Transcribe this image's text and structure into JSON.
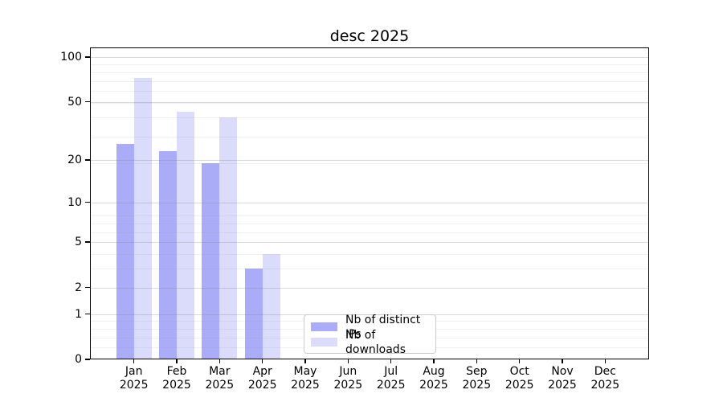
{
  "chart_data": {
    "type": "bar",
    "title": "desc 2025",
    "months": [
      "Jan",
      "Feb",
      "Mar",
      "Apr",
      "May",
      "Jun",
      "Jul",
      "Aug",
      "Sep",
      "Oct",
      "Nov",
      "Dec"
    ],
    "year_label": "2025",
    "series": [
      {
        "name": "Nb of distinct IPs",
        "color": "#abacf8",
        "values": [
          26,
          23,
          19,
          3,
          0,
          0,
          0,
          0,
          0,
          0,
          0,
          0
        ]
      },
      {
        "name": "Nb of downloads",
        "color": "#dbdbfb",
        "values": [
          72,
          43,
          39,
          4,
          0,
          0,
          0,
          0,
          0,
          0,
          0,
          0
        ]
      }
    ],
    "yscale": "log(1+v)",
    "ylim": [
      0,
      116
    ],
    "ytick_values": [
      0,
      1,
      2,
      5,
      10,
      20,
      50,
      100
    ],
    "ytick_labels": [
      "0",
      "1",
      "2",
      "5",
      "10",
      "20",
      "50",
      "100"
    ],
    "minor_gridline_values": [
      0.2,
      0.4,
      0.6,
      0.8,
      3,
      4,
      6,
      7,
      8,
      19,
      29,
      39,
      49,
      59,
      69,
      79,
      89
    ],
    "grid": true,
    "legend_position": "lower center"
  },
  "colors": {
    "spine": "#000000",
    "legend_border": "#cbcbcb"
  }
}
